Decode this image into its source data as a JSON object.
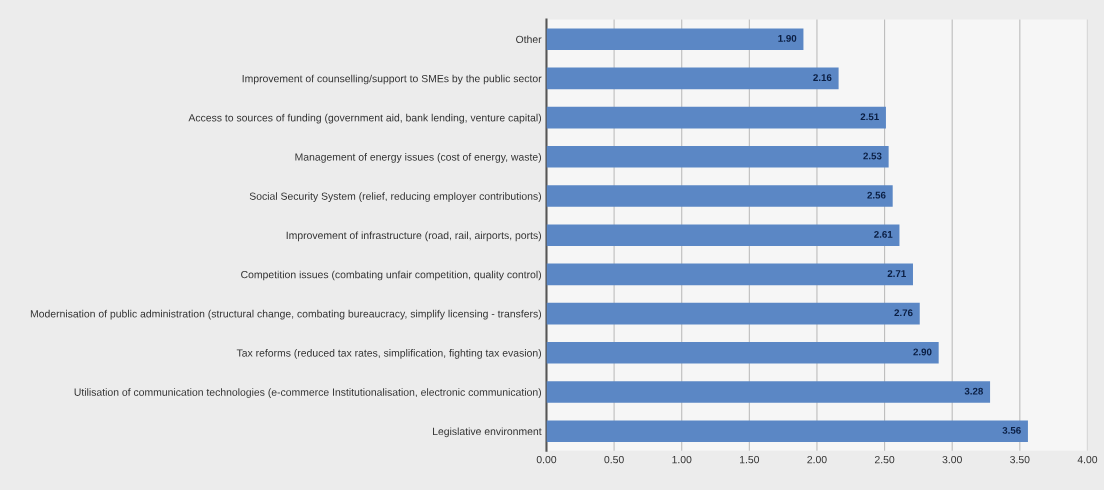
{
  "chart_data": {
    "type": "bar",
    "orientation": "horizontal",
    "categories": [
      "Other",
      "Improvement of counselling/support to SMEs by the public sector",
      "Access to sources of funding (government aid, bank lending, venture capital)",
      "Management of energy issues (cost of energy, waste)",
      "Social Security System (relief, reducing employer contributions)",
      "Improvement of infrastructure (road, rail, airports, ports)",
      "Competition issues (combating unfair competition, quality control)",
      "Modernisation of public administration (structural change, combating bureaucracy, simplify licensing - transfers)",
      "Tax reforms (reduced tax rates, simplification, fighting tax evasion)",
      "Utilisation of communication technologies (e-commerce Institutionalisation, electronic communication)",
      "Legislative environment"
    ],
    "values": [
      1.9,
      2.16,
      2.51,
      2.53,
      2.56,
      2.61,
      2.71,
      2.76,
      2.9,
      3.28,
      3.56
    ],
    "value_labels": [
      "1.90",
      "2.16",
      "2.51",
      "2.53",
      "2.56",
      "2.61",
      "2.71",
      "2.76",
      "2.90",
      "3.28",
      "3.56"
    ],
    "color": "#5b87c5",
    "xlim": [
      0,
      4
    ],
    "xticks": [
      {
        "value": 0,
        "label": "0.00"
      },
      {
        "value": 0.5,
        "label": "0.50"
      },
      {
        "value": 1,
        "label": "1.00"
      },
      {
        "value": 1.5,
        "label": "1.50"
      },
      {
        "value": 2,
        "label": "2.00"
      },
      {
        "value": 2.5,
        "label": "2.50"
      },
      {
        "value": 3,
        "label": "3.00"
      },
      {
        "value": 3.5,
        "label": "3.50"
      },
      {
        "value": 4,
        "label": "4.00"
      }
    ],
    "grid": "x"
  }
}
